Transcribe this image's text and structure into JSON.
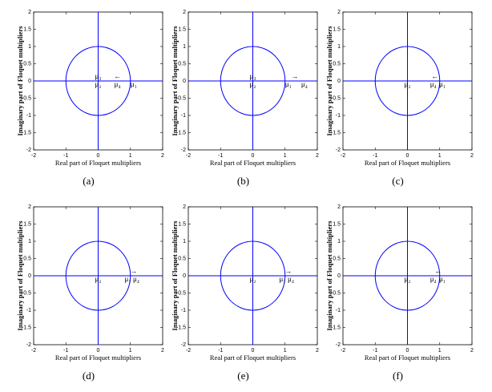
{
  "chart_data": [
    {
      "type": "complex-plane",
      "caption": "(a)",
      "xlabel": "Real part of Floquet multipliers",
      "ylabel": "Imaginary part of Floquet multipliers",
      "xlim": [
        -2,
        2
      ],
      "ylim": [
        -2,
        2
      ],
      "xticks": [
        -2,
        -1,
        0,
        1,
        2
      ],
      "yticks": [
        -2,
        -1.5,
        -1,
        -0.5,
        0,
        0.5,
        1,
        1.5,
        2
      ],
      "circle_radius": 1,
      "zero_lines": true,
      "color": "#0000ff",
      "annotations": [
        {
          "text": "μ₃",
          "x": 0,
          "y": 0.12
        },
        {
          "text": "μ₂",
          "x": 0,
          "y": -0.12
        },
        {
          "text": "←",
          "x": 0.6,
          "y": 0.12
        },
        {
          "text": "μ₄",
          "x": 0.6,
          "y": -0.12
        },
        {
          "text": "μ₁",
          "x": 1.1,
          "y": -0.12
        }
      ]
    },
    {
      "type": "complex-plane",
      "caption": "(b)",
      "xlabel": "Real part of Floquet multipliers",
      "ylabel": "Imaginary part of Floquet multipliers",
      "xlim": [
        -2,
        2
      ],
      "ylim": [
        -2,
        2
      ],
      "xticks": [
        -2,
        -1,
        0,
        1,
        2
      ],
      "yticks": [
        -2,
        -1.5,
        -1,
        -0.5,
        0,
        0.5,
        1,
        1.5,
        2
      ],
      "circle_radius": 1,
      "zero_lines": true,
      "color": "#0000ff",
      "annotations": [
        {
          "text": "μ₃",
          "x": 0,
          "y": 0.12
        },
        {
          "text": "μ₂",
          "x": 0,
          "y": -0.12
        },
        {
          "text": "→",
          "x": 1.3,
          "y": 0.12
        },
        {
          "text": "μ₁",
          "x": 1.1,
          "y": -0.12
        },
        {
          "text": "μ₄",
          "x": 1.6,
          "y": -0.12
        }
      ]
    },
    {
      "type": "complex-plane",
      "caption": "(c)",
      "xlabel": "Real part of Floquet multipliers",
      "ylabel": "Imaginary part of Floquet multipliers",
      "xlim": [
        -2,
        2
      ],
      "ylim": [
        -2,
        2
      ],
      "xticks": [
        -2,
        -1,
        0,
        1,
        2
      ],
      "yticks": [
        -2,
        -1.5,
        -1,
        -0.5,
        0,
        0.5,
        1,
        1.5,
        2
      ],
      "circle_radius": 1,
      "zero_lines": true,
      "color": "#0000ff",
      "annotations": [
        {
          "text": "μ₂",
          "x": 0,
          "y": -0.12
        },
        {
          "text": "←",
          "x": 0.85,
          "y": 0.12
        },
        {
          "text": "μ₄",
          "x": 0.8,
          "y": -0.12
        },
        {
          "text": "μ₁",
          "x": 1.08,
          "y": -0.12
        }
      ]
    },
    {
      "type": "complex-plane",
      "caption": "(d)",
      "xlabel": "Real part of Floquet multipliers",
      "ylabel": "Imaginary part of Floquet multipliers",
      "xlim": [
        -2,
        2
      ],
      "ylim": [
        -2,
        2
      ],
      "xticks": [
        -2,
        -1,
        0,
        1,
        2
      ],
      "yticks": [
        -2,
        -1.5,
        -1,
        -0.5,
        0,
        0.5,
        1,
        1.5,
        2
      ],
      "circle_radius": 1,
      "zero_lines": true,
      "color": "#0000ff",
      "annotations": [
        {
          "text": "μ₂",
          "x": 0,
          "y": -0.12
        },
        {
          "text": "→",
          "x": 1.1,
          "y": 0.12
        },
        {
          "text": "μ₁",
          "x": 0.92,
          "y": -0.12
        },
        {
          "text": "μ₄",
          "x": 1.18,
          "y": -0.12
        }
      ]
    },
    {
      "type": "complex-plane",
      "caption": "(e)",
      "xlabel": "Real part of Floquet multipliers",
      "ylabel": "Imaginary part of Floquet multipliers",
      "xlim": [
        -2,
        2
      ],
      "ylim": [
        -2,
        2
      ],
      "xticks": [
        -2,
        -1,
        0,
        1,
        2
      ],
      "yticks": [
        -2,
        -1.5,
        -1,
        -0.5,
        0,
        0.5,
        1,
        1.5,
        2
      ],
      "circle_radius": 1,
      "zero_lines": true,
      "color": "#0000ff",
      "annotations": [
        {
          "text": "μ₂",
          "x": 0,
          "y": -0.12
        },
        {
          "text": "→",
          "x": 1.1,
          "y": 0.12
        },
        {
          "text": "μ₁",
          "x": 0.92,
          "y": -0.12
        },
        {
          "text": "μ₄",
          "x": 1.18,
          "y": -0.12
        }
      ]
    },
    {
      "type": "complex-plane",
      "caption": "(f)",
      "xlabel": "Real part of Floquet multipliers",
      "ylabel": "Imaginary part of Floquet multipliers",
      "xlim": [
        -2,
        2
      ],
      "ylim": [
        -2,
        2
      ],
      "xticks": [
        -2,
        -1,
        0,
        1,
        2
      ],
      "yticks": [
        -2,
        -1.5,
        -1,
        -0.5,
        0,
        0.5,
        1,
        1.5,
        2
      ],
      "circle_radius": 1,
      "zero_lines": true,
      "color": "#0000ff",
      "annotations": [
        {
          "text": "μ₂",
          "x": 0,
          "y": -0.12
        },
        {
          "text": "←",
          "x": 0.95,
          "y": 0.12
        },
        {
          "text": "μ₄",
          "x": 0.8,
          "y": -0.12
        },
        {
          "text": "μ₁",
          "x": 1.08,
          "y": -0.12
        }
      ]
    }
  ]
}
